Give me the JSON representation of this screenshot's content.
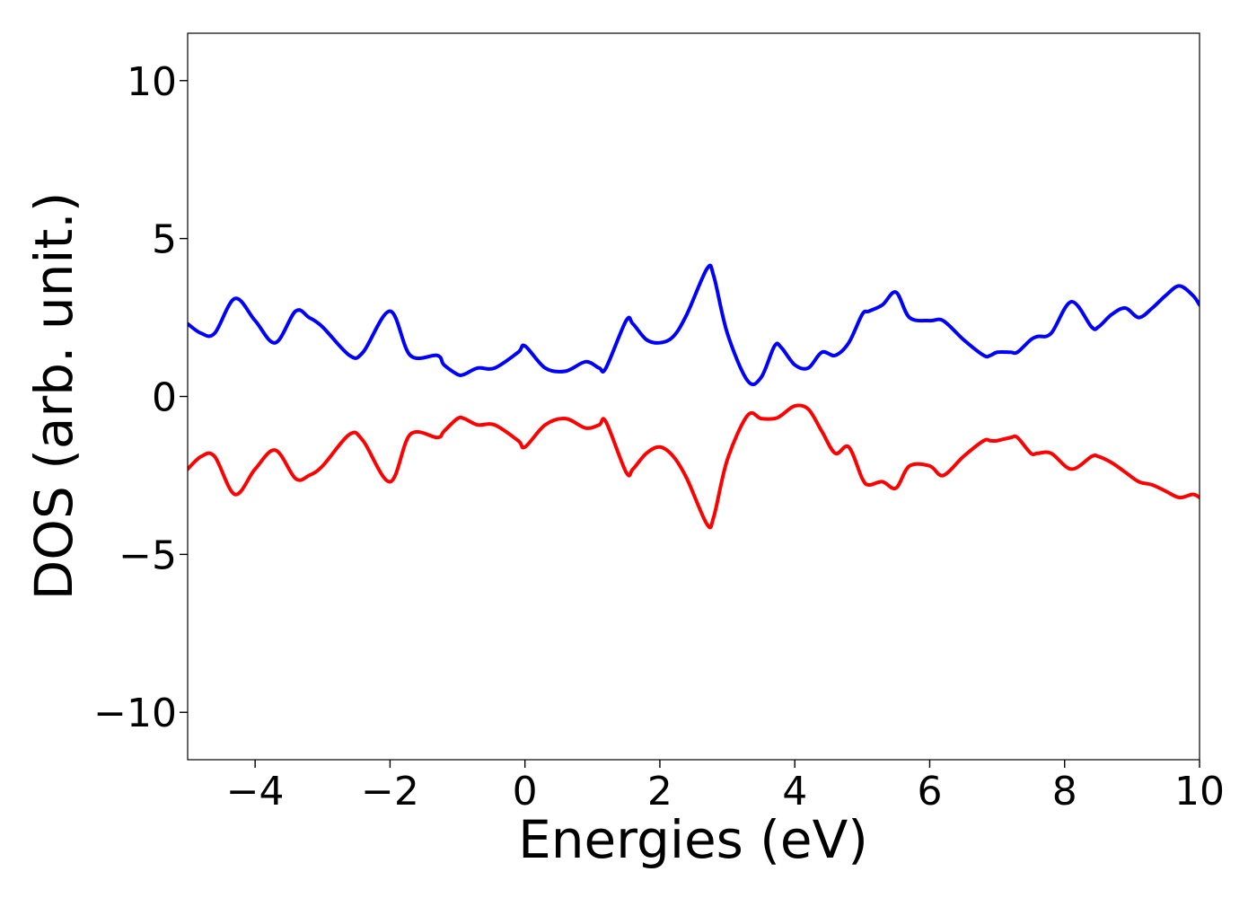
{
  "chart_data": {
    "type": "line",
    "title": "",
    "xlabel": "Energies (eV)",
    "ylabel": "DOS (arb. unit.)",
    "xlim": [
      -5,
      10
    ],
    "ylim": [
      -11.5,
      11.5
    ],
    "xticks": [
      {
        "value": -4,
        "label": "−4"
      },
      {
        "value": -2,
        "label": "−2"
      },
      {
        "value": 0,
        "label": "0"
      },
      {
        "value": 2,
        "label": "2"
      },
      {
        "value": 4,
        "label": "4"
      },
      {
        "value": 6,
        "label": "6"
      },
      {
        "value": 8,
        "label": "8"
      },
      {
        "value": 10,
        "label": "10"
      }
    ],
    "yticks": [
      {
        "value": 10,
        "label": "10"
      },
      {
        "value": 5,
        "label": "5"
      },
      {
        "value": 0,
        "label": "0"
      },
      {
        "value": -5,
        "label": "−5"
      },
      {
        "value": -10,
        "label": "−10"
      }
    ],
    "grid": false,
    "legend": "none",
    "x": [
      -5.0,
      -4.8,
      -4.6,
      -4.3,
      -4.0,
      -3.7,
      -3.4,
      -3.2,
      -3.0,
      -2.6,
      -2.4,
      -2.0,
      -1.7,
      -1.3,
      -1.2,
      -1.0,
      -0.9,
      -0.7,
      -0.45,
      -0.1,
      0.0,
      0.3,
      0.6,
      0.9,
      1.1,
      1.2,
      1.5,
      1.6,
      1.8,
      2.0,
      2.2,
      2.4,
      2.7,
      2.8,
      3.0,
      3.3,
      3.5,
      3.7,
      3.8,
      4.0,
      4.2,
      4.4,
      4.6,
      4.8,
      5.0,
      5.1,
      5.3,
      5.5,
      5.7,
      6.0,
      6.2,
      6.5,
      6.8,
      6.9,
      7.0,
      7.2,
      7.3,
      7.5,
      7.6,
      7.8,
      8.1,
      8.4,
      8.5,
      8.7,
      8.9,
      9.1,
      9.3,
      9.5,
      9.7,
      9.9,
      10.0
    ],
    "series": [
      {
        "color": "#0000ff",
        "values": [
          2.3,
          2.0,
          2.0,
          3.1,
          2.4,
          1.7,
          2.7,
          2.5,
          2.2,
          1.3,
          1.4,
          2.7,
          1.3,
          1.3,
          1.0,
          0.7,
          0.7,
          0.9,
          0.9,
          1.4,
          1.6,
          0.9,
          0.8,
          1.1,
          0.9,
          0.9,
          2.4,
          2.3,
          1.8,
          1.7,
          1.9,
          2.6,
          4.05,
          3.8,
          2.0,
          0.5,
          0.6,
          1.6,
          1.55,
          1.0,
          0.9,
          1.4,
          1.3,
          1.7,
          2.6,
          2.7,
          2.9,
          3.3,
          2.5,
          2.4,
          2.4,
          1.8,
          1.3,
          1.3,
          1.4,
          1.4,
          1.4,
          1.8,
          1.9,
          2.0,
          3.0,
          2.2,
          2.2,
          2.6,
          2.8,
          2.5,
          2.8,
          3.2,
          3.5,
          3.2,
          2.9
        ]
      },
      {
        "color": "#ff0000",
        "values": [
          -2.3,
          -1.9,
          -1.9,
          -3.1,
          -2.3,
          -1.7,
          -2.6,
          -2.5,
          -2.2,
          -1.2,
          -1.4,
          -2.7,
          -1.2,
          -1.3,
          -1.1,
          -0.7,
          -0.7,
          -0.9,
          -0.9,
          -1.4,
          -1.6,
          -0.9,
          -0.7,
          -1.0,
          -0.9,
          -0.8,
          -2.4,
          -2.3,
          -1.8,
          -1.6,
          -1.9,
          -2.6,
          -4.05,
          -3.8,
          -2.0,
          -0.6,
          -0.7,
          -0.7,
          -0.6,
          -0.3,
          -0.4,
          -1.1,
          -1.8,
          -1.6,
          -2.6,
          -2.8,
          -2.7,
          -2.9,
          -2.2,
          -2.2,
          -2.5,
          -1.9,
          -1.4,
          -1.4,
          -1.4,
          -1.3,
          -1.3,
          -1.8,
          -1.8,
          -1.8,
          -2.3,
          -1.9,
          -1.9,
          -2.1,
          -2.4,
          -2.7,
          -2.8,
          -3.0,
          -3.2,
          -3.1,
          -3.2
        ]
      }
    ]
  }
}
